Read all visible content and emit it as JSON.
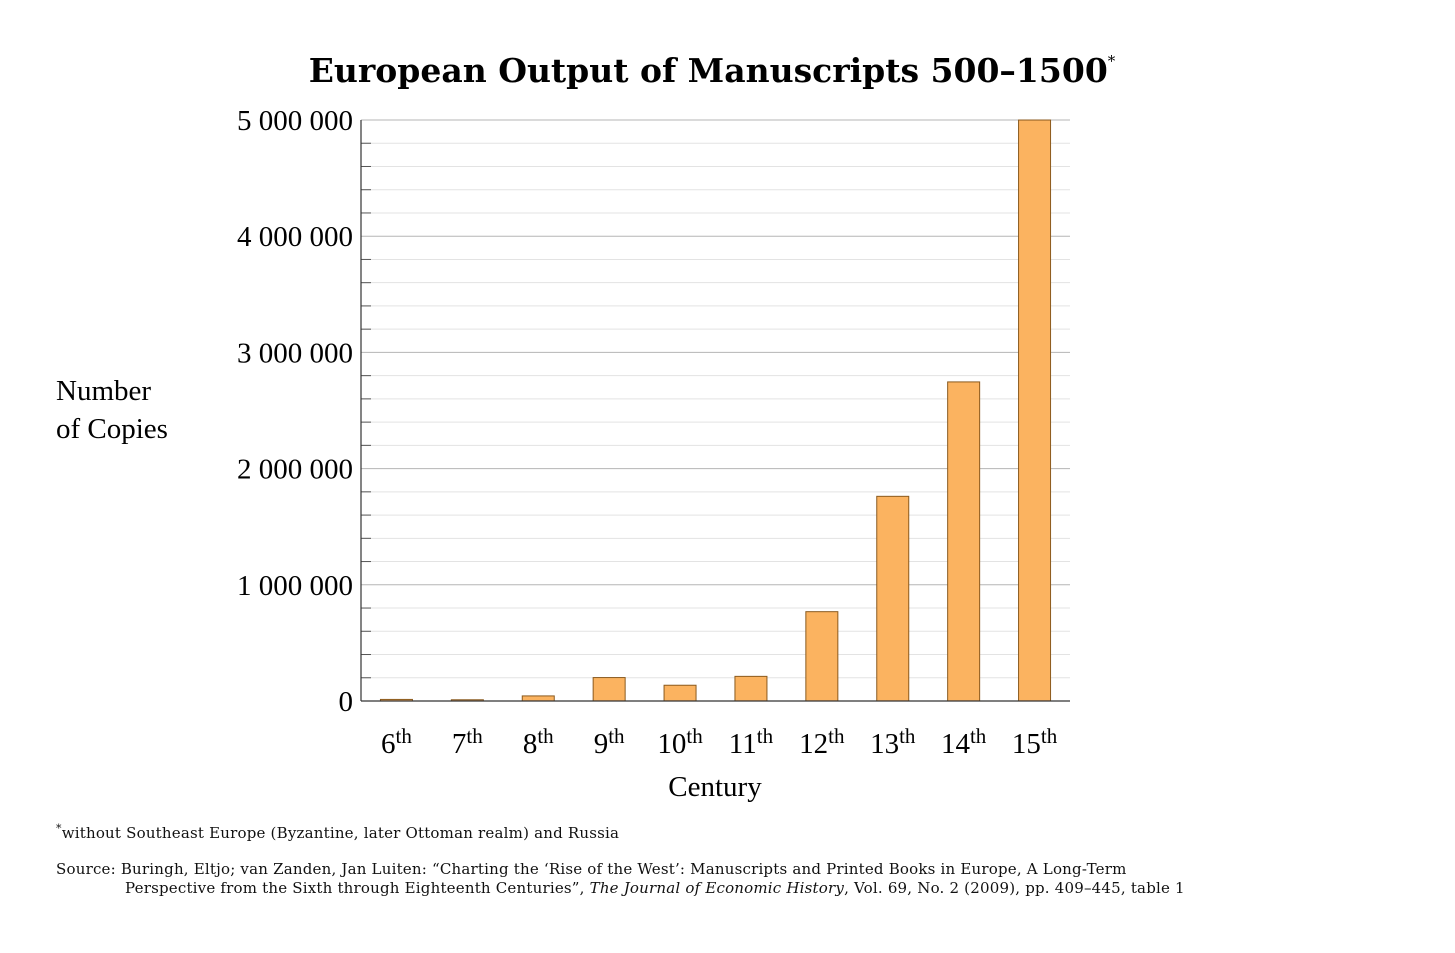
{
  "chart_data": {
    "type": "bar",
    "title": "European Output of Manuscripts 500–1500",
    "title_mark": "*",
    "xlabel": "Century",
    "ylabel_lines": [
      "Number",
      "of Copies"
    ],
    "categories": [
      {
        "num": "6",
        "suf": "th"
      },
      {
        "num": "7",
        "suf": "th"
      },
      {
        "num": "8",
        "suf": "th"
      },
      {
        "num": "9",
        "suf": "th"
      },
      {
        "num": "10",
        "suf": "th"
      },
      {
        "num": "11",
        "suf": "th"
      },
      {
        "num": "12",
        "suf": "th"
      },
      {
        "num": "13",
        "suf": "th"
      },
      {
        "num": "14",
        "suf": "th"
      },
      {
        "num": "15",
        "suf": "th"
      }
    ],
    "values": [
      13552,
      10639,
      43702,
      201742,
      135637,
      212030,
      768721,
      1761402,
      2746013,
      4999819
    ],
    "ylim": [
      0,
      5000000
    ],
    "yticks": [
      0,
      1000000,
      2000000,
      3000000,
      4000000,
      5000000
    ],
    "ytick_labels": [
      "0",
      "1 000 000",
      "2 000 000",
      "3 000 000",
      "4 000 000",
      "5 000 000"
    ],
    "grid": true,
    "bar_color": "#fbb360",
    "bar_edge": "#8a5a1e"
  },
  "footnote": {
    "mark": "*",
    "text": "without Southeast Europe (Byzantine, later Ottoman realm) and Russia"
  },
  "source": {
    "line1": "Source: Buringh, Eltjo; van Zanden, Jan Luiten: “Charting the ‘Rise of the West’: Manuscripts and Printed Books in Europe, A Long-Term",
    "line2_pre": "Perspective from the Sixth through Eighteenth Centuries”, ",
    "line2_journal": "The Journal of Economic History",
    "line2_post": ", Vol. 69, No. 2 (2009), pp. 409–445, table 1"
  }
}
